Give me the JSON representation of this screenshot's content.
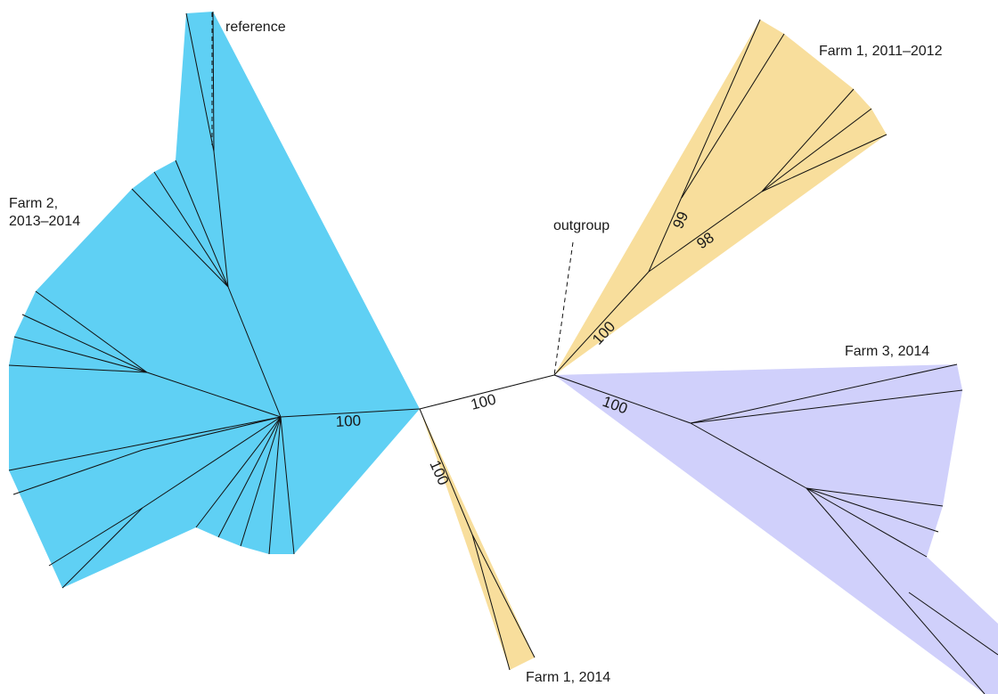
{
  "clades": [
    {
      "key": "farm2",
      "label_lines": [
        "Farm 2,",
        "2013–2014"
      ],
      "color": "#5fd0f4"
    },
    {
      "key": "farm1_2011",
      "label_lines": [
        "Farm 1, 2011–2012"
      ],
      "color": "#f8de9c"
    },
    {
      "key": "farm3",
      "label_lines": [
        "Farm 3, 2014"
      ],
      "color": "#d0d0fb"
    },
    {
      "key": "farm1_2014",
      "label_lines": [
        "Farm 1, 2014"
      ],
      "color": "#f8de9c"
    }
  ],
  "annotations": {
    "reference": "reference",
    "outgroup": "outgroup"
  },
  "bootstrap": {
    "farm2_stem": "100",
    "central": "100",
    "farm1_2014_stem": "100",
    "farm1_2011_stem": "100",
    "farm1_2011_inner1": "99",
    "farm1_2011_inner2": "98",
    "farm3_stem": "100"
  }
}
